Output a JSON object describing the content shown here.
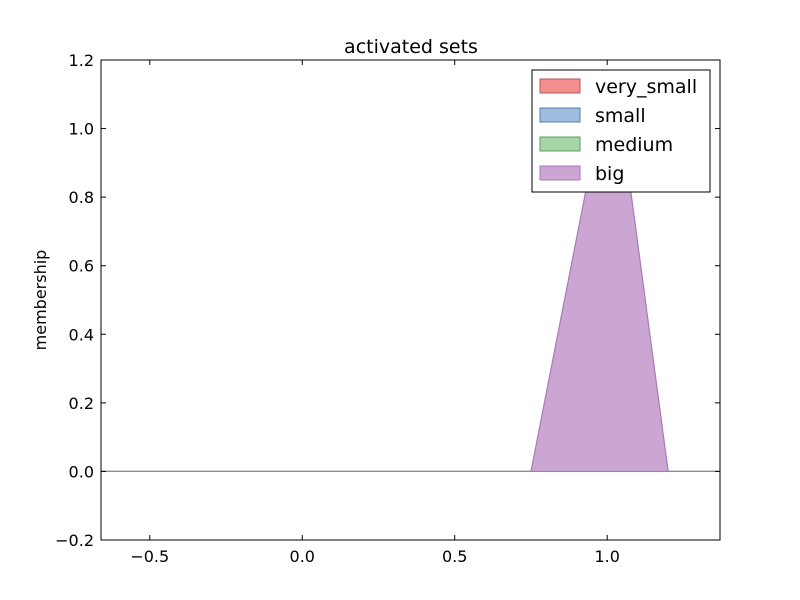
{
  "chart_data": {
    "type": "area",
    "title": "activated sets",
    "xlabel": "",
    "ylabel": "membership",
    "xlim": [
      -0.66,
      1.37
    ],
    "ylim": [
      -0.2,
      1.2
    ],
    "x_ticks": [
      -0.5,
      0.0,
      0.5,
      1.0
    ],
    "x_tick_labels": [
      "−0.5",
      "0.0",
      "0.5",
      "1.0"
    ],
    "y_ticks": [
      -0.2,
      0.0,
      0.2,
      0.4,
      0.6,
      0.8,
      1.0,
      1.2
    ],
    "y_tick_labels": [
      "−0.2",
      "0.0",
      "0.2",
      "0.4",
      "0.6",
      "0.8",
      "1.0",
      "1.2"
    ],
    "grid": false,
    "legend_position": "top-right",
    "series": [
      {
        "name": "very_small",
        "color": "#f28e8e",
        "edge": "#b25a5a",
        "x": [
          -0.66,
          1.37
        ],
        "y": [
          0,
          0
        ]
      },
      {
        "name": "small",
        "color": "#9dbde0",
        "edge": "#5b7fa8",
        "x": [
          -0.66,
          1.37
        ],
        "y": [
          0,
          0
        ]
      },
      {
        "name": "medium",
        "color": "#a6d6a6",
        "edge": "#5f9a5f",
        "x": [
          -0.66,
          1.37
        ],
        "y": [
          0,
          0
        ]
      },
      {
        "name": "big",
        "color": "#cba6d3",
        "edge": "#a87ab6",
        "x": [
          -0.66,
          0.75,
          0.97,
          1.05,
          1.2,
          1.37
        ],
        "y": [
          0,
          0,
          1.0,
          1.0,
          0,
          0
        ]
      }
    ]
  }
}
